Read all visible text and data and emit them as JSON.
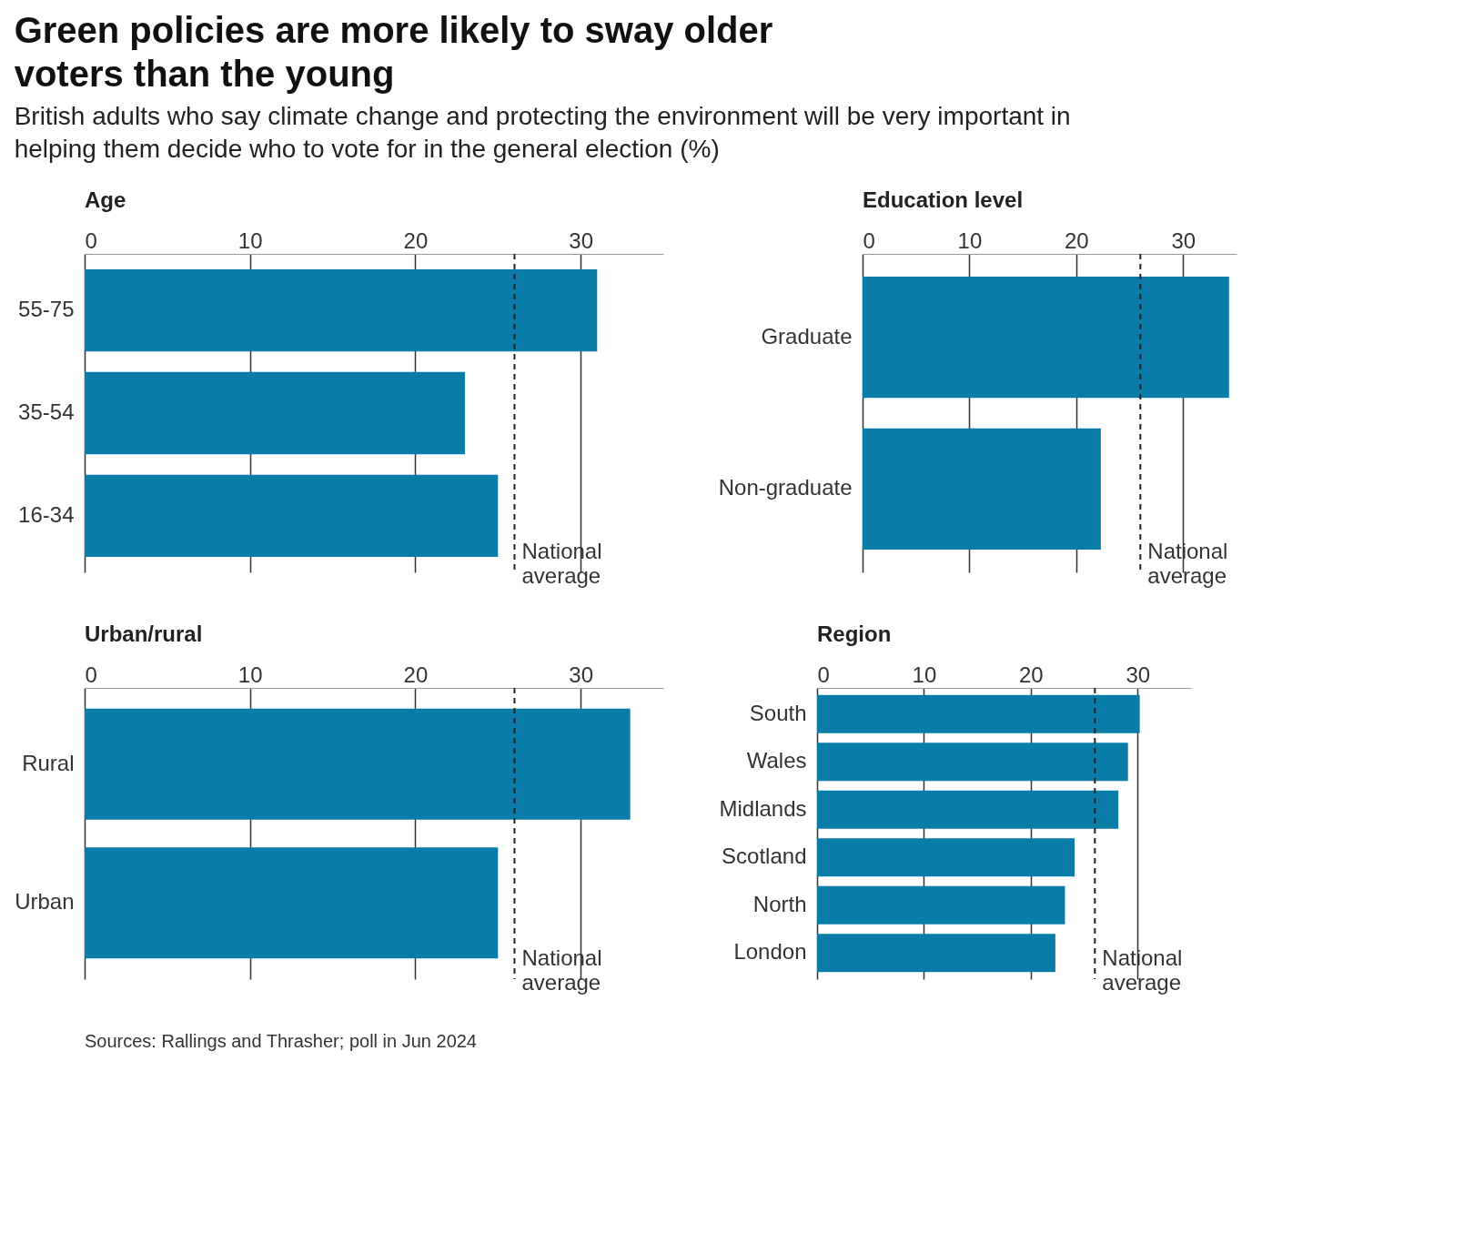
{
  "chart_data": [
    {
      "type": "other",
      "title": "Green policies are more likely to sway older voters than the young",
      "subtitle": "British adults who say climate change and protecting the environment will be very important in helping them decide who to vote for in the general election (%)",
      "annotations": [
        "Sources: Rallings and Thrasher; poll in Jun 2024"
      ]
    },
    {
      "type": "bar",
      "orientation": "horizontal",
      "title": "Age",
      "categories": [
        "55-75",
        "35-54",
        "16-34"
      ],
      "values": [
        31,
        23,
        25
      ],
      "color": "#0a7ca8",
      "xlim": [
        0,
        35
      ],
      "xticks": [
        0,
        10,
        20,
        30
      ],
      "grid": "x",
      "ref_lines": [
        {
          "axis": "x",
          "value": 26,
          "label": "National average",
          "line_style": "dashed"
        }
      ]
    },
    {
      "type": "bar",
      "orientation": "horizontal",
      "title": "Education level",
      "categories": [
        "Graduate",
        "Non-graduate"
      ],
      "values": [
        34.3,
        22.3
      ],
      "color": "#0a7ca8",
      "xlim": [
        0,
        35
      ],
      "xticks": [
        0,
        10,
        20,
        30
      ],
      "grid": "x",
      "ref_lines": [
        {
          "axis": "x",
          "value": 26,
          "label": "National average",
          "line_style": "dashed"
        }
      ]
    },
    {
      "type": "bar",
      "orientation": "horizontal",
      "title": "Urban/rural",
      "categories": [
        "Rural",
        "Urban"
      ],
      "values": [
        33,
        25
      ],
      "color": "#0a7ca8",
      "xlim": [
        0,
        35
      ],
      "xticks": [
        0,
        10,
        20,
        30
      ],
      "grid": "x",
      "ref_lines": [
        {
          "axis": "x",
          "value": 26,
          "label": "National average",
          "line_style": "dashed"
        }
      ]
    },
    {
      "type": "bar",
      "orientation": "horizontal",
      "title": "Region",
      "categories": [
        "South",
        "Wales",
        "Midlands",
        "Scotland",
        "North",
        "London"
      ],
      "values": [
        30.2,
        29.1,
        28.2,
        24.1,
        23.2,
        22.3
      ],
      "color": "#0a7ca8",
      "xlim": [
        0,
        35
      ],
      "xticks": [
        0,
        10,
        20,
        30
      ],
      "grid": "x",
      "ref_lines": [
        {
          "axis": "x",
          "value": 26,
          "label": "National average",
          "line_style": "dashed"
        }
      ]
    }
  ]
}
